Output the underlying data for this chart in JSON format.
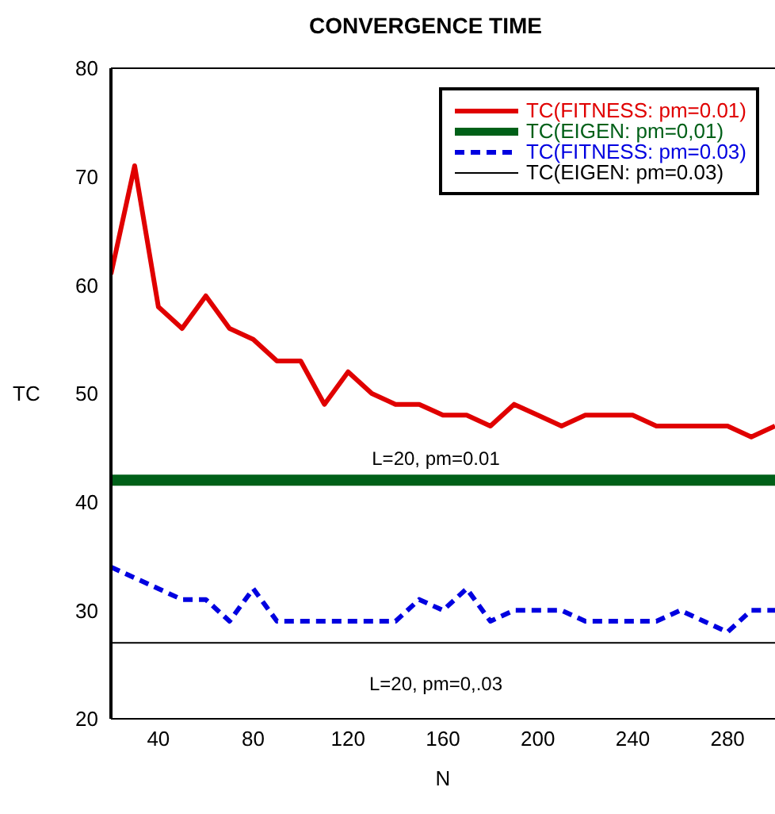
{
  "chart_data": {
    "type": "line",
    "title": "CONVERGENCE TIME",
    "xlabel": "N",
    "ylabel": "TC",
    "x": [
      20,
      30,
      40,
      50,
      60,
      70,
      80,
      90,
      100,
      110,
      120,
      130,
      140,
      150,
      160,
      170,
      180,
      190,
      200,
      210,
      220,
      230,
      240,
      250,
      260,
      270,
      280,
      290,
      300
    ],
    "series": [
      {
        "name": "TC(FITNESS: pm=0.01)",
        "color": "#e00000",
        "values": [
          61,
          71,
          58,
          56,
          59,
          56,
          55,
          53,
          53,
          49,
          52,
          50,
          49,
          49,
          48,
          48,
          47,
          49,
          48,
          47,
          48,
          48,
          48,
          47,
          47,
          47,
          47,
          46,
          47
        ]
      },
      {
        "name": "TC(EIGEN: pm=0,01)",
        "color": "#006018",
        "values": [
          42,
          42,
          42,
          42,
          42,
          42,
          42,
          42,
          42,
          42,
          42,
          42,
          42,
          42,
          42,
          42,
          42,
          42,
          42,
          42,
          42,
          42,
          42,
          42,
          42,
          42,
          42,
          42,
          42
        ]
      },
      {
        "name": "TC(FITNESS: pm=0.03)",
        "color": "#0000e0",
        "line_style": "dashed",
        "values": [
          34,
          33,
          32,
          31,
          31,
          29,
          32,
          29,
          29,
          29,
          29,
          29,
          29,
          31,
          30,
          32,
          29,
          30,
          30,
          30,
          29,
          29,
          29,
          29,
          30,
          29,
          28,
          30,
          30
        ]
      },
      {
        "name": "TC(EIGEN: pm=0.03)",
        "color": "#000000",
        "values": [
          27,
          27,
          27,
          27,
          27,
          27,
          27,
          27,
          27,
          27,
          27,
          27,
          27,
          27,
          27,
          27,
          27,
          27,
          27,
          27,
          27,
          27,
          27,
          27,
          27,
          27,
          27,
          27,
          27
        ]
      }
    ],
    "xlim": [
      20,
      300
    ],
    "xticks": [
      40,
      80,
      120,
      160,
      200,
      240,
      280
    ],
    "ylim": [
      20,
      80
    ],
    "yticks": [
      20,
      30,
      40,
      50,
      60,
      70,
      80
    ],
    "grid": false,
    "legend": "top right",
    "marker": "none",
    "line_style": "solid",
    "annotations": [
      "L=20, pm=0.01",
      "L=20, pm=0,.03"
    ]
  }
}
